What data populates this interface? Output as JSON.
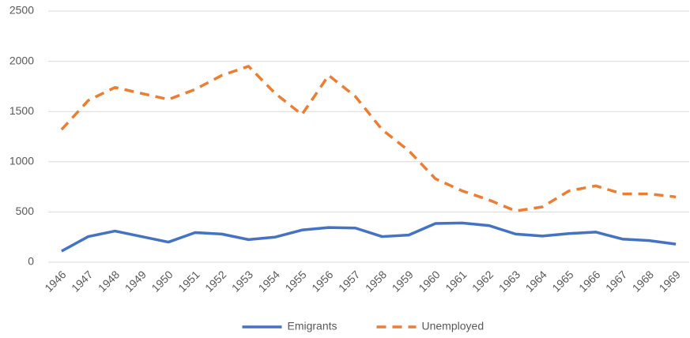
{
  "chart_data": {
    "type": "line",
    "categories": [
      "1946",
      "1947",
      "1948",
      "1949",
      "1950",
      "1951",
      "1952",
      "1953",
      "1954",
      "1955",
      "1956",
      "1957",
      "1958",
      "1959",
      "1960",
      "1961",
      "1962",
      "1963",
      "1964",
      "1965",
      "1966",
      "1967",
      "1968",
      "1969"
    ],
    "series": [
      {
        "name": "Emigrants",
        "color": "#4472c4",
        "dash": false,
        "values": [
          110,
          255,
          310,
          255,
          200,
          295,
          280,
          225,
          250,
          320,
          345,
          340,
          255,
          270,
          385,
          390,
          365,
          280,
          260,
          285,
          300,
          230,
          215,
          180
        ]
      },
      {
        "name": "Unemployed",
        "color": "#ed7d31",
        "dash": true,
        "values": [
          1320,
          1610,
          1740,
          1680,
          1620,
          1720,
          1860,
          1950,
          1680,
          1470,
          1860,
          1650,
          1320,
          1110,
          830,
          710,
          620,
          510,
          550,
          710,
          760,
          680,
          680,
          650
        ]
      }
    ],
    "ylim": [
      0,
      2500
    ],
    "yticks": [
      0,
      500,
      1000,
      1500,
      2000,
      2500
    ],
    "grid": true,
    "legend": "bottom"
  }
}
